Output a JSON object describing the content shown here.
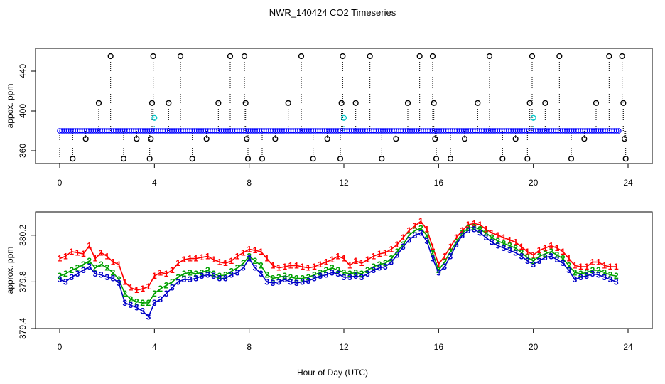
{
  "figure": {
    "title": "NWR_140424  CO2 Timeseries",
    "xlabel": "Hour of Day (UTC)"
  },
  "chart_data": [
    {
      "type": "scatter",
      "name": "top-panel",
      "ylabel": "appox. ppm",
      "xlim": [
        0,
        24
      ],
      "ylim": [
        350,
        460
      ],
      "xticks": [
        0,
        4,
        8,
        12,
        16,
        20,
        24
      ],
      "yticks": [
        360,
        400,
        440
      ],
      "baseline": 380,
      "series": [
        {
          "name": "blue",
          "color": "#0000ff",
          "values": [
            380,
            380,
            380,
            380,
            380,
            380,
            380,
            380,
            380,
            380,
            380,
            380,
            380,
            380,
            380,
            380,
            380,
            380,
            380,
            380,
            380,
            380,
            380,
            380,
            380,
            380,
            380,
            380,
            380,
            380,
            380,
            380,
            380,
            380,
            380,
            380,
            380,
            380,
            380,
            380,
            380,
            380,
            380,
            380,
            380,
            380,
            380,
            380,
            380,
            380
          ]
        },
        {
          "name": "cyan",
          "color": "#00c8c8",
          "points": [
            [
              4.0,
              393
            ],
            [
              12.0,
              393
            ],
            [
              20.0,
              393
            ]
          ]
        },
        {
          "name": "outliers",
          "color": "#000000",
          "points": [
            [
              0.55,
              352
            ],
            [
              1.1,
              372
            ],
            [
              1.65,
              408
            ],
            [
              2.15,
              455
            ],
            [
              2.7,
              352
            ],
            [
              3.25,
              372
            ],
            [
              3.8,
              352
            ],
            [
              3.85,
              372
            ],
            [
              3.9,
              408
            ],
            [
              3.95,
              455
            ],
            [
              4.6,
              408
            ],
            [
              5.1,
              455
            ],
            [
              5.6,
              352
            ],
            [
              6.2,
              372
            ],
            [
              6.7,
              408
            ],
            [
              7.2,
              455
            ],
            [
              7.8,
              455
            ],
            [
              7.85,
              408
            ],
            [
              7.9,
              372
            ],
            [
              7.95,
              352
            ],
            [
              8.55,
              352
            ],
            [
              9.1,
              372
            ],
            [
              9.65,
              408
            ],
            [
              10.2,
              455
            ],
            [
              10.7,
              352
            ],
            [
              11.3,
              372
            ],
            [
              11.85,
              352
            ],
            [
              11.9,
              408
            ],
            [
              11.95,
              455
            ],
            [
              12.5,
              408
            ],
            [
              13.1,
              455
            ],
            [
              13.6,
              352
            ],
            [
              14.2,
              372
            ],
            [
              14.7,
              408
            ],
            [
              15.2,
              455
            ],
            [
              15.75,
              455
            ],
            [
              15.8,
              408
            ],
            [
              15.85,
              372
            ],
            [
              15.9,
              352
            ],
            [
              16.5,
              352
            ],
            [
              17.1,
              372
            ],
            [
              17.65,
              408
            ],
            [
              18.15,
              455
            ],
            [
              18.7,
              352
            ],
            [
              19.25,
              372
            ],
            [
              19.75,
              352
            ],
            [
              19.85,
              408
            ],
            [
              19.95,
              455
            ],
            [
              20.5,
              408
            ],
            [
              21.1,
              455
            ],
            [
              21.6,
              352
            ],
            [
              22.15,
              372
            ],
            [
              22.65,
              408
            ],
            [
              23.2,
              455
            ],
            [
              23.75,
              455
            ],
            [
              23.8,
              408
            ],
            [
              23.85,
              372
            ],
            [
              23.9,
              352
            ]
          ]
        }
      ]
    },
    {
      "type": "line",
      "name": "bottom-panel",
      "ylabel": "approx. ppm",
      "xlim": [
        0,
        24
      ],
      "ylim": [
        379.4,
        380.4
      ],
      "xticks": [
        0,
        4,
        8,
        12,
        16,
        20,
        24
      ],
      "yticks": [
        379.4,
        379.8,
        380.2
      ],
      "x_start": 0.0,
      "x_step": 0.25,
      "series": [
        {
          "name": "1",
          "color": "#ff0000",
          "values": [
            380.0,
            380.02,
            380.06,
            380.05,
            380.04,
            380.11,
            380.0,
            380.05,
            380.02,
            379.97,
            379.95,
            379.8,
            379.75,
            379.73,
            379.74,
            379.76,
            379.85,
            379.88,
            379.87,
            379.9,
            379.96,
            379.99,
            380.0,
            380.0,
            380.01,
            380.02,
            379.99,
            379.97,
            379.96,
            379.98,
            380.02,
            380.05,
            380.08,
            380.07,
            380.06,
            380.0,
            379.94,
            379.92,
            379.93,
            379.94,
            379.94,
            379.93,
            379.92,
            379.93,
            379.95,
            379.97,
            379.99,
            380.02,
            380.0,
            379.94,
            379.98,
            379.96,
            379.99,
            380.02,
            380.04,
            380.05,
            380.08,
            380.12,
            380.18,
            380.24,
            380.28,
            380.32,
            380.25,
            380.1,
            379.95,
            380.02,
            380.1,
            380.18,
            380.24,
            380.29,
            380.3,
            380.29,
            380.25,
            380.22,
            380.2,
            380.18,
            380.16,
            380.14,
            380.1,
            380.06,
            380.03,
            380.07,
            380.09,
            380.11,
            380.09,
            380.06,
            380.0,
            379.94,
            379.93,
            379.93,
            379.97,
            379.97,
            379.94,
            379.93,
            379.93
          ]
        },
        {
          "name": "2",
          "color": "#00a000",
          "values": [
            379.85,
            379.87,
            379.9,
            379.92,
            379.95,
            379.98,
            379.92,
            379.95,
            379.92,
            379.88,
            379.82,
            379.7,
            379.65,
            379.63,
            379.62,
            379.62,
            379.7,
            379.74,
            379.77,
            379.8,
            379.84,
            379.87,
            379.88,
            379.87,
            379.88,
            379.9,
            379.87,
            379.85,
            379.86,
            379.89,
            379.92,
            379.96,
            380.02,
            379.98,
            379.94,
            379.86,
            379.83,
            379.84,
            379.85,
            379.84,
            379.83,
            379.83,
            379.84,
            379.86,
            379.88,
            379.9,
            379.92,
            379.9,
            379.88,
            379.87,
            379.88,
            379.87,
            379.9,
            379.93,
            379.95,
            379.96,
            380.0,
            380.06,
            380.12,
            380.2,
            380.24,
            380.26,
            380.2,
            380.05,
            379.9,
            379.97,
            380.06,
            380.14,
            380.22,
            380.26,
            380.27,
            380.25,
            380.22,
            380.18,
            380.15,
            380.13,
            380.11,
            380.09,
            380.05,
            380.01,
            379.98,
            380.02,
            380.04,
            380.06,
            380.03,
            380.0,
            379.94,
            379.88,
            379.87,
            379.88,
            379.9,
            379.9,
            379.88,
            379.86,
            379.85
          ]
        },
        {
          "name": "3",
          "color": "#0000c8",
          "values": [
            379.82,
            379.8,
            379.84,
            379.87,
            379.9,
            379.93,
            379.87,
            379.86,
            379.84,
            379.83,
            379.79,
            379.62,
            379.6,
            379.58,
            379.55,
            379.5,
            379.62,
            379.65,
            379.7,
            379.75,
            379.8,
            379.82,
            379.82,
            379.83,
            379.85,
            379.86,
            379.85,
            379.83,
            379.83,
            379.86,
            379.88,
            379.92,
            380.0,
            379.92,
            379.87,
            379.8,
            379.79,
            379.8,
            379.82,
            379.8,
            379.79,
            379.8,
            379.81,
            379.83,
            379.85,
            379.86,
            379.88,
            379.87,
            379.84,
            379.84,
            379.85,
            379.84,
            379.87,
            379.9,
            379.92,
            379.93,
            379.97,
            380.03,
            380.1,
            380.16,
            380.2,
            380.22,
            380.15,
            380.0,
            379.88,
            379.93,
            380.02,
            380.12,
            380.2,
            380.24,
            380.25,
            380.22,
            380.18,
            380.14,
            380.11,
            380.09,
            380.07,
            380.05,
            380.02,
            379.98,
            379.95,
            379.98,
            380.01,
            380.02,
            379.99,
            379.96,
            379.9,
            379.82,
            379.84,
            379.85,
            379.87,
            379.86,
            379.84,
            379.82,
            379.8
          ]
        }
      ]
    }
  ]
}
